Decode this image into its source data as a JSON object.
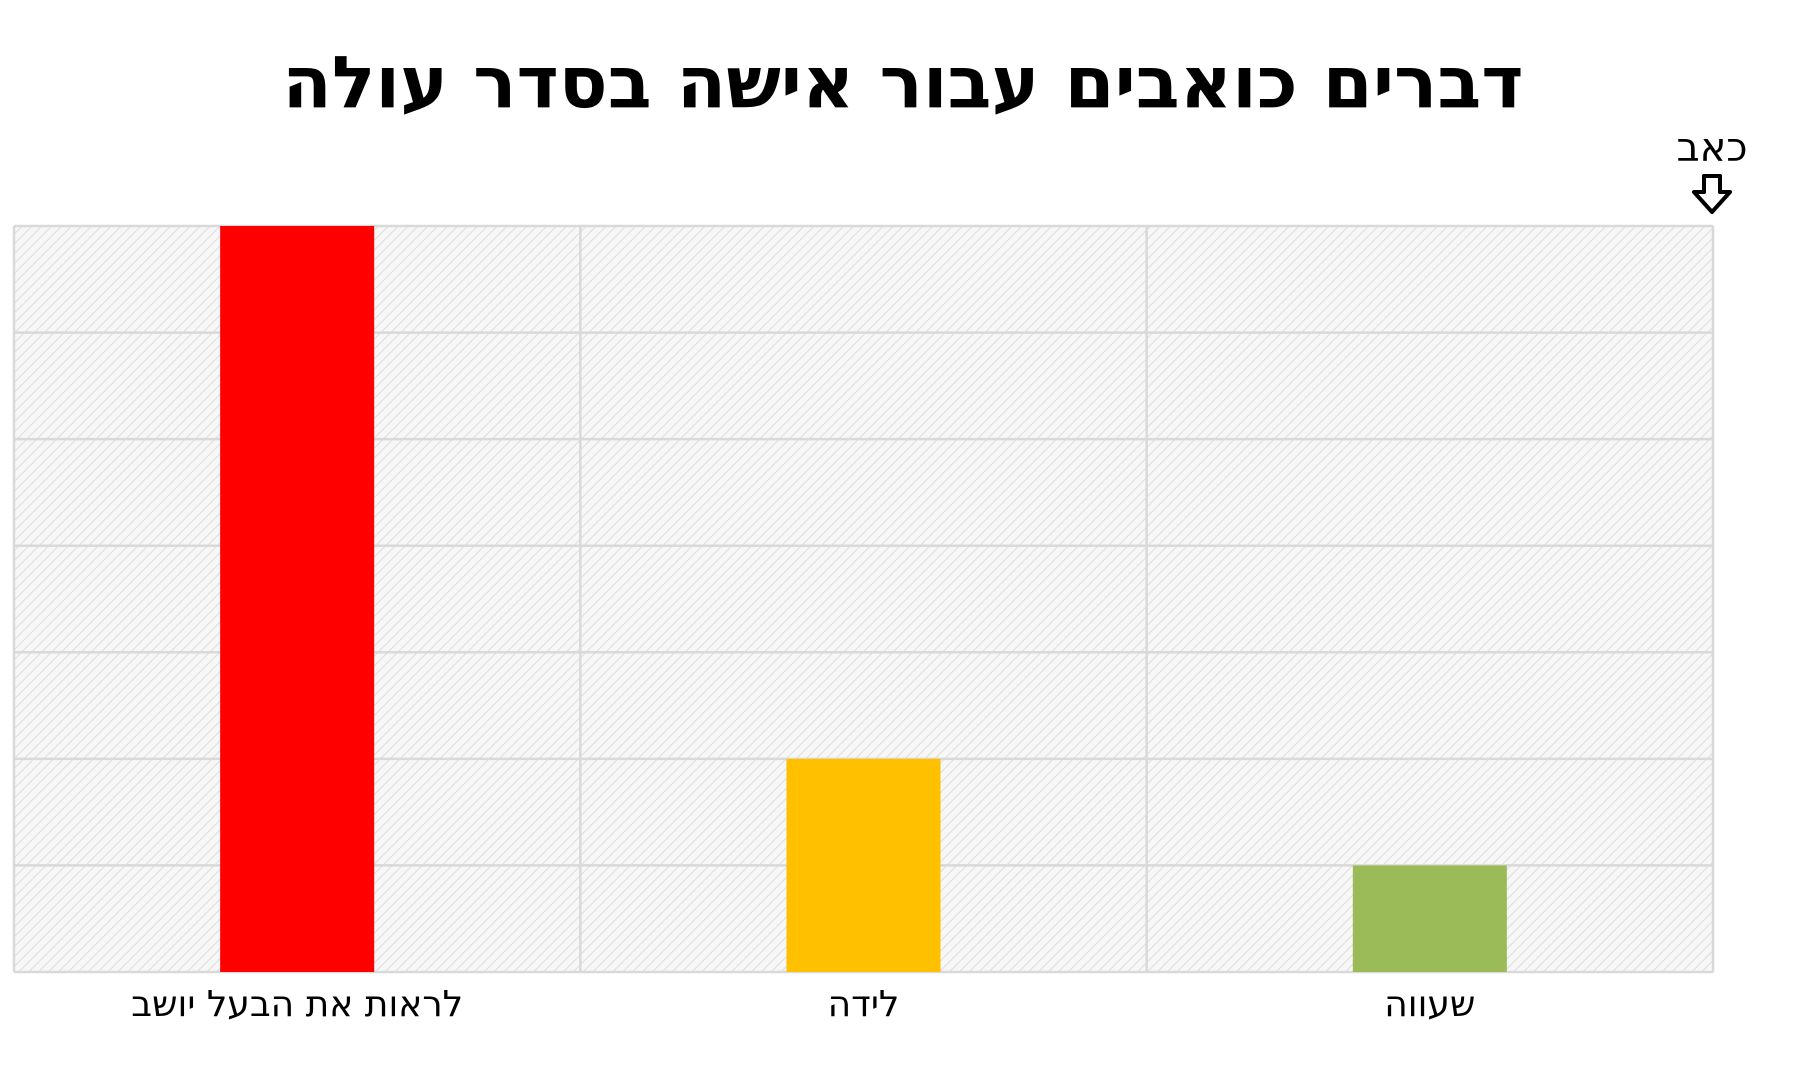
{
  "chart_data": {
    "type": "bar",
    "title": "דברים כואבים עבור אישה בסדר עולה",
    "annotation": "כאב",
    "categories": [
      "לראות את הבעל יושב",
      "לידה",
      "שעווה"
    ],
    "values": [
      7,
      2,
      1
    ],
    "colors": [
      "#ff0000",
      "#ffc000",
      "#9bbb59"
    ],
    "ylim": [
      0,
      7
    ],
    "yticks": [
      0,
      1,
      2,
      3,
      4,
      5,
      6,
      7
    ],
    "grid": true
  }
}
